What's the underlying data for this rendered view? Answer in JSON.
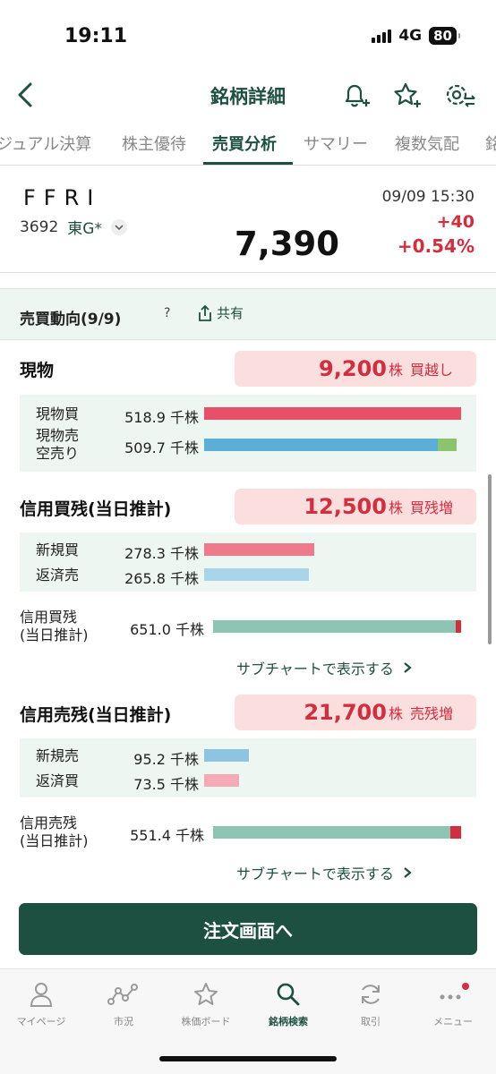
{
  "status": {
    "time": "19:11",
    "network": "4G",
    "battery": "80"
  },
  "nav": {
    "title": "銘柄詳細"
  },
  "tabs": [
    {
      "label": "ジュアル決算"
    },
    {
      "label": "株主優待"
    },
    {
      "label": "売買分析"
    },
    {
      "label": "サマリー"
    },
    {
      "label": "複数気配"
    },
    {
      "label": "銘"
    }
  ],
  "stock": {
    "name": "FFRI",
    "code": "3692",
    "market": "東G*",
    "price": "7,390",
    "datetime": "09/09 15:30",
    "change": "+40",
    "change_pct": "+0.54%"
  },
  "section": {
    "title": "売買動向(9/9)",
    "help": "?",
    "share": "共有"
  },
  "genbutsu": {
    "title": "現物",
    "badge_num": "9,200",
    "badge_unit": "株",
    "badge_label": "買越し",
    "rows": [
      {
        "label": "現物買",
        "value": "518.9",
        "unit": "千株",
        "fraction": 1.0
      },
      {
        "label": "現物売\n空売り",
        "value": "509.7",
        "unit": "千株",
        "fraction": 0.982
      }
    ]
  },
  "margin_buy": {
    "title": "信用買残(当日推計)",
    "badge_num": "12,500",
    "badge_unit": "株",
    "badge_label": "買残増",
    "rows": [
      {
        "label": "新規買",
        "value": "278.3",
        "unit": "千株"
      },
      {
        "label": "返済売",
        "value": "265.8",
        "unit": "千株"
      }
    ],
    "total_label": "信用買残\n(当日推計)",
    "total_value": "651.0",
    "total_unit": "千株",
    "subchart": "サブチャートで表示する"
  },
  "margin_sell": {
    "title": "信用売残(当日推計)",
    "badge_num": "21,700",
    "badge_unit": "株",
    "badge_label": "売残増",
    "rows": [
      {
        "label": "新規売",
        "value": "95.2",
        "unit": "千株"
      },
      {
        "label": "返済買",
        "value": "73.5",
        "unit": "千株"
      }
    ],
    "total_label": "信用売残\n(当日推計)",
    "total_value": "551.4",
    "total_unit": "千株",
    "subchart": "サブチャートで表示する"
  },
  "order_button": "注文画面へ",
  "bottom_nav": [
    {
      "label": "マイページ",
      "icon": "person-icon"
    },
    {
      "label": "市況",
      "icon": "market-line-icon"
    },
    {
      "label": "株価ボード",
      "icon": "star-icon"
    },
    {
      "label": "銘柄検索",
      "icon": "search-icon"
    },
    {
      "label": "取引",
      "icon": "refresh-icon"
    },
    {
      "label": "メニュー",
      "icon": "more-icon"
    }
  ],
  "colors": {
    "brand": "#1e5041",
    "up": "#d22e3e",
    "buy_bar": "#e8506a",
    "sell_bar": "#5aaed8",
    "short_bar": "#8cc46e",
    "total_bar": "#8ec4b4"
  }
}
